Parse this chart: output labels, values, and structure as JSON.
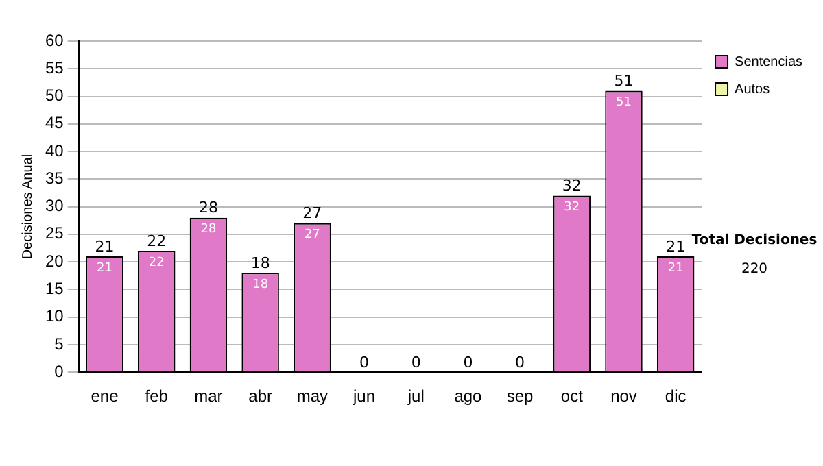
{
  "chart_data": {
    "type": "bar",
    "stacked": true,
    "ylabel": "Decisiones Anual",
    "categories": [
      "ene",
      "feb",
      "mar",
      "abr",
      "may",
      "jun",
      "jul",
      "ago",
      "sep",
      "oct",
      "nov",
      "dic"
    ],
    "series": [
      {
        "name": "Sentencias",
        "color": "#e07ac8",
        "values": [
          21,
          22,
          28,
          18,
          27,
          0,
          0,
          0,
          0,
          32,
          51,
          21
        ],
        "value_labels": [
          "21",
          "22",
          "28",
          "18",
          "27",
          null,
          null,
          null,
          null,
          "32",
          "51",
          "21"
        ]
      },
      {
        "name": "Autos",
        "color": "#eef5a8",
        "values": [
          0,
          0,
          0,
          0,
          0,
          0,
          0,
          0,
          0,
          0,
          0,
          0
        ]
      }
    ],
    "totals": [
      "21",
      "22",
      "28",
      "18",
      "27",
      "0",
      "0",
      "0",
      "0",
      "32",
      "51",
      "21"
    ],
    "ylim": [
      0,
      60
    ],
    "yticks": [
      0,
      5,
      10,
      15,
      20,
      25,
      30,
      35,
      40,
      45,
      50,
      55,
      60
    ],
    "grid": "y",
    "legend": "right",
    "annotations": [
      "Total Decisiones",
      "220"
    ]
  }
}
